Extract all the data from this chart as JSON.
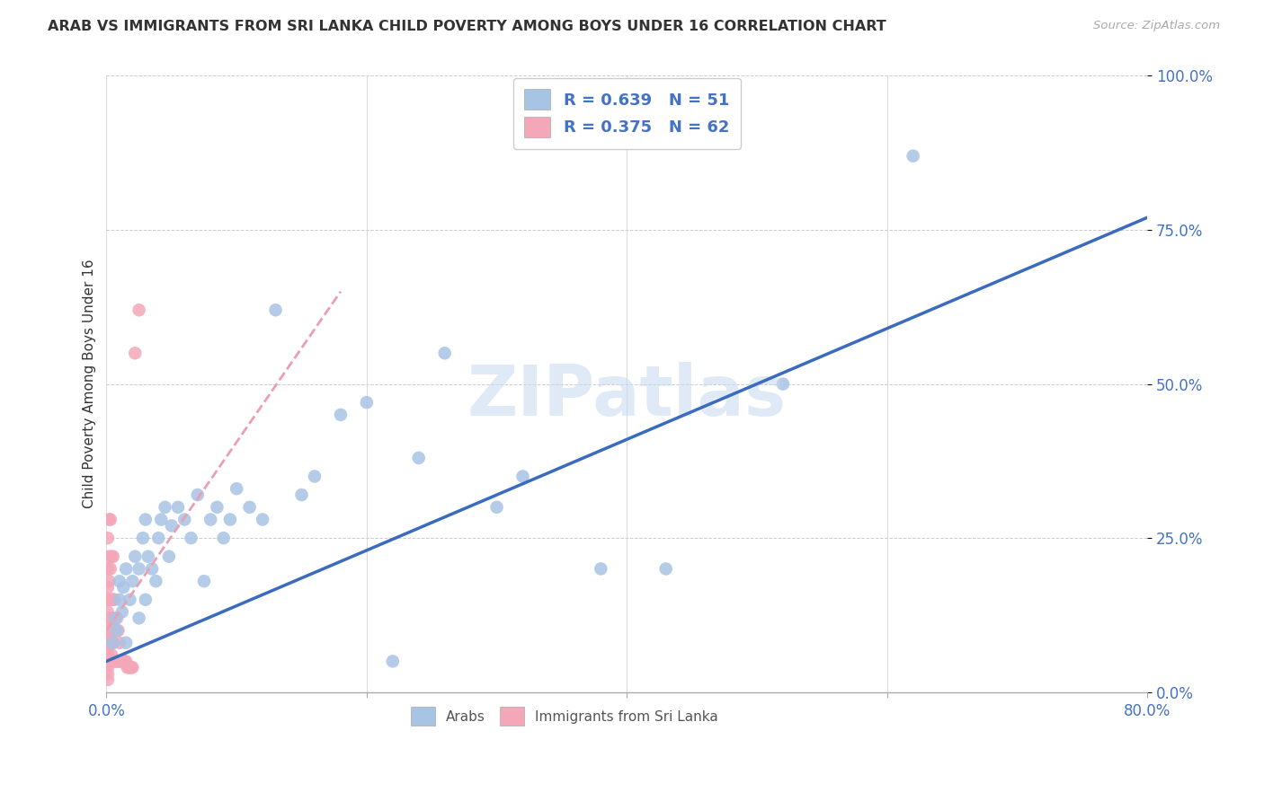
{
  "title": "ARAB VS IMMIGRANTS FROM SRI LANKA CHILD POVERTY AMONG BOYS UNDER 16 CORRELATION CHART",
  "source": "Source: ZipAtlas.com",
  "ylabel": "Child Poverty Among Boys Under 16",
  "xlim": [
    0.0,
    0.8
  ],
  "ylim": [
    0.0,
    1.0
  ],
  "ytick_positions": [
    0.0,
    0.25,
    0.5,
    0.75,
    1.0
  ],
  "ytick_labels": [
    "0.0%",
    "25.0%",
    "50.0%",
    "75.0%",
    "100.0%"
  ],
  "xtick_positions": [
    0.0,
    0.2,
    0.4,
    0.6,
    0.8
  ],
  "xtick_labels": [
    "0.0%",
    "",
    "",
    "",
    "80.0%"
  ],
  "arab_R": 0.639,
  "arab_N": 51,
  "srilanka_R": 0.375,
  "srilanka_N": 62,
  "arab_scatter_color": "#a8c4e5",
  "srilanka_scatter_color": "#f4a7b9",
  "arab_line_color": "#3a6bbf",
  "srilanka_line_color": "#e8a0b4",
  "watermark": "ZIPatlas",
  "arab_legend_label": "Arabs",
  "srilanka_legend_label": "Immigrants from Sri Lanka",
  "arab_line_x0": 0.0,
  "arab_line_y0": 0.05,
  "arab_line_x1": 0.8,
  "arab_line_y1": 0.77,
  "sl_line_x0": 0.0,
  "sl_line_y0": 0.1,
  "sl_line_x1": 0.18,
  "sl_line_y1": 0.65,
  "arab_x": [
    0.005,
    0.007,
    0.008,
    0.01,
    0.01,
    0.012,
    0.013,
    0.015,
    0.015,
    0.018,
    0.02,
    0.022,
    0.025,
    0.025,
    0.028,
    0.03,
    0.03,
    0.032,
    0.035,
    0.038,
    0.04,
    0.042,
    0.045,
    0.048,
    0.05,
    0.055,
    0.06,
    0.065,
    0.07,
    0.075,
    0.08,
    0.085,
    0.09,
    0.095,
    0.1,
    0.11,
    0.12,
    0.13,
    0.15,
    0.16,
    0.18,
    0.2,
    0.22,
    0.24,
    0.26,
    0.3,
    0.32,
    0.38,
    0.43,
    0.52,
    0.62
  ],
  "arab_y": [
    0.08,
    0.12,
    0.1,
    0.15,
    0.18,
    0.13,
    0.17,
    0.08,
    0.2,
    0.15,
    0.18,
    0.22,
    0.2,
    0.12,
    0.25,
    0.15,
    0.28,
    0.22,
    0.2,
    0.18,
    0.25,
    0.28,
    0.3,
    0.22,
    0.27,
    0.3,
    0.28,
    0.25,
    0.32,
    0.18,
    0.28,
    0.3,
    0.25,
    0.28,
    0.33,
    0.3,
    0.28,
    0.62,
    0.32,
    0.35,
    0.45,
    0.47,
    0.05,
    0.38,
    0.55,
    0.3,
    0.35,
    0.2,
    0.2,
    0.5,
    0.87
  ],
  "srilanka_x": [
    0.001,
    0.001,
    0.001,
    0.001,
    0.001,
    0.001,
    0.001,
    0.001,
    0.001,
    0.001,
    0.001,
    0.001,
    0.001,
    0.001,
    0.001,
    0.002,
    0.002,
    0.002,
    0.002,
    0.002,
    0.002,
    0.002,
    0.003,
    0.003,
    0.003,
    0.003,
    0.003,
    0.003,
    0.003,
    0.004,
    0.004,
    0.004,
    0.004,
    0.004,
    0.005,
    0.005,
    0.005,
    0.005,
    0.005,
    0.006,
    0.006,
    0.006,
    0.007,
    0.007,
    0.008,
    0.008,
    0.009,
    0.009,
    0.01,
    0.01,
    0.011,
    0.012,
    0.013,
    0.014,
    0.015,
    0.016,
    0.017,
    0.018,
    0.019,
    0.02,
    0.022,
    0.025
  ],
  "srilanka_y": [
    0.02,
    0.03,
    0.04,
    0.05,
    0.06,
    0.07,
    0.08,
    0.09,
    0.1,
    0.12,
    0.13,
    0.15,
    0.17,
    0.2,
    0.25,
    0.08,
    0.1,
    0.12,
    0.15,
    0.18,
    0.22,
    0.28,
    0.05,
    0.08,
    0.1,
    0.12,
    0.15,
    0.2,
    0.28,
    0.06,
    0.08,
    0.1,
    0.15,
    0.22,
    0.05,
    0.08,
    0.1,
    0.15,
    0.22,
    0.05,
    0.1,
    0.15,
    0.05,
    0.1,
    0.05,
    0.12,
    0.05,
    0.1,
    0.05,
    0.08,
    0.05,
    0.05,
    0.05,
    0.05,
    0.05,
    0.04,
    0.04,
    0.04,
    0.04,
    0.04,
    0.55,
    0.62
  ]
}
